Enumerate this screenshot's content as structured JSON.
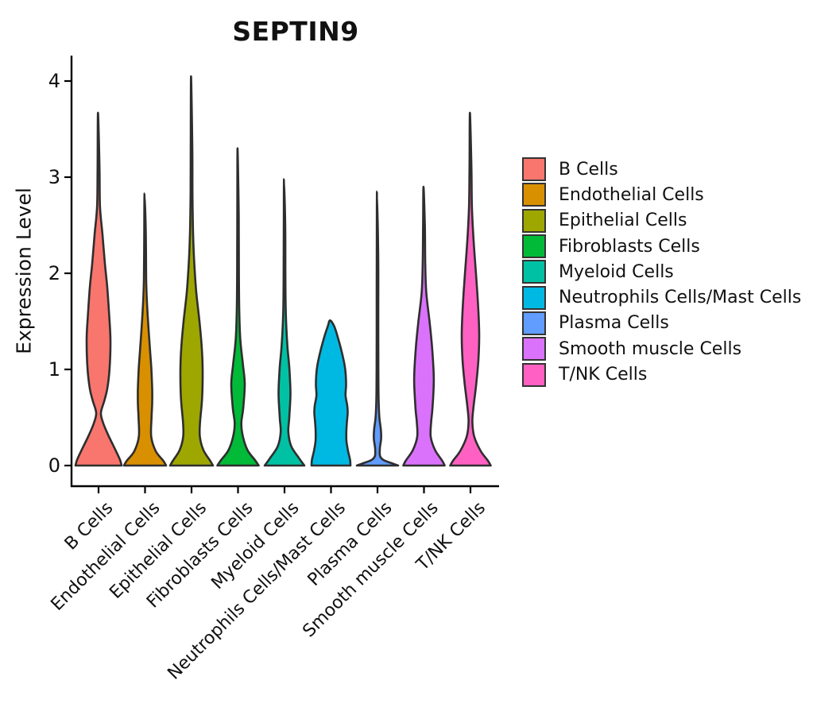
{
  "figure": {
    "background": "#FFFFFF"
  },
  "colors": {
    "axis": "#000000",
    "violin_outline": "#2E2E2E",
    "text": "#111111",
    "legend_swatch_border": "#333333"
  },
  "chart_data": {
    "type": "violin",
    "title": "SEPTIN9",
    "ylabel": "Expression Level",
    "xlabel": "",
    "yticks": [
      0,
      1,
      2,
      3,
      4
    ],
    "ylim": [
      0,
      4.2
    ],
    "grid": false,
    "legend_position": "right",
    "categories": [
      "B Cells",
      "Endothelial Cells",
      "Epithelial Cells",
      "Fibroblasts Cells",
      "Myeloid Cells",
      "Neutrophils Cells/Mast Cells",
      "Plasma Cells",
      "Smooth muscle Cells",
      "T/NK Cells"
    ],
    "series": [
      {
        "name": "B Cells",
        "color": "#F8766D",
        "max_expression": 3.67,
        "profile": [
          [
            0,
            29
          ],
          [
            0.06,
            27
          ],
          [
            0.15,
            22
          ],
          [
            0.32,
            12
          ],
          [
            0.45,
            5.5
          ],
          [
            0.55,
            3
          ],
          [
            0.68,
            7.5
          ],
          [
            0.8,
            11
          ],
          [
            1.0,
            13.8
          ],
          [
            1.3,
            15
          ],
          [
            1.55,
            13.5
          ],
          [
            1.85,
            11
          ],
          [
            2.1,
            8
          ],
          [
            2.4,
            5
          ],
          [
            2.7,
            1.8
          ],
          [
            3.1,
            1.2
          ],
          [
            3.67,
            0.7
          ]
        ]
      },
      {
        "name": "Endothelial Cells",
        "color": "#D89000",
        "max_expression": 2.83,
        "profile": [
          [
            0,
            26.5
          ],
          [
            0.05,
            23
          ],
          [
            0.15,
            13.5
          ],
          [
            0.3,
            7.8
          ],
          [
            0.5,
            8.2
          ],
          [
            0.65,
            9
          ],
          [
            0.8,
            9
          ],
          [
            1.0,
            8
          ],
          [
            1.2,
            6.3
          ],
          [
            1.45,
            4.2
          ],
          [
            1.7,
            2.4
          ],
          [
            1.95,
            1.4
          ],
          [
            2.4,
            1.0
          ],
          [
            2.83,
            0.6
          ]
        ]
      },
      {
        "name": "Epithelial Cells",
        "color": "#9EA700",
        "max_expression": 4.05,
        "profile": [
          [
            0,
            27
          ],
          [
            0.05,
            23.5
          ],
          [
            0.16,
            15
          ],
          [
            0.3,
            10.5
          ],
          [
            0.45,
            10.7
          ],
          [
            0.7,
            13.3
          ],
          [
            1.0,
            14
          ],
          [
            1.25,
            12.7
          ],
          [
            1.5,
            10
          ],
          [
            1.8,
            6
          ],
          [
            2.1,
            3.5
          ],
          [
            2.4,
            2
          ],
          [
            2.8,
            1.2
          ],
          [
            3.3,
            1.0
          ],
          [
            4.05,
            0.6
          ]
        ]
      },
      {
        "name": "Fibroblasts Cells",
        "color": "#00BA38",
        "max_expression": 3.3,
        "profile": [
          [
            0,
            26
          ],
          [
            0.05,
            22
          ],
          [
            0.16,
            12
          ],
          [
            0.3,
            6.2
          ],
          [
            0.44,
            4.2
          ],
          [
            0.6,
            6.6
          ],
          [
            0.85,
            8.5
          ],
          [
            1.05,
            6.2
          ],
          [
            1.3,
            3
          ],
          [
            1.6,
            1.6
          ],
          [
            2.0,
            1.1
          ],
          [
            2.6,
            0.9
          ],
          [
            3.3,
            0.6
          ]
        ]
      },
      {
        "name": "Myeloid Cells",
        "color": "#00C1A3",
        "max_expression": 2.98,
        "profile": [
          [
            0,
            25
          ],
          [
            0.08,
            18
          ],
          [
            0.2,
            8.5
          ],
          [
            0.35,
            4.8
          ],
          [
            0.5,
            6
          ],
          [
            0.75,
            7.5
          ],
          [
            1.0,
            6.2
          ],
          [
            1.25,
            3.6
          ],
          [
            1.6,
            1.6
          ],
          [
            2.0,
            1.1
          ],
          [
            2.5,
            0.9
          ],
          [
            2.98,
            0.6
          ]
        ]
      },
      {
        "name": "Neutrophils Cells/Mast Cells",
        "color": "#00B9E3",
        "max_expression": 1.51,
        "profile": [
          [
            0,
            24.5
          ],
          [
            0.06,
            24
          ],
          [
            0.15,
            21.5
          ],
          [
            0.25,
            19.5
          ],
          [
            0.35,
            19.3
          ],
          [
            0.45,
            20
          ],
          [
            0.55,
            21
          ],
          [
            0.62,
            20.5
          ],
          [
            0.73,
            18.3
          ],
          [
            0.84,
            19
          ],
          [
            0.95,
            18.5
          ],
          [
            1.05,
            17
          ],
          [
            1.2,
            13
          ],
          [
            1.35,
            8
          ],
          [
            1.45,
            4
          ],
          [
            1.51,
            1.2
          ]
        ]
      },
      {
        "name": "Plasma Cells",
        "color": "#619CFF",
        "max_expression": 2.85,
        "profile": [
          [
            0,
            26
          ],
          [
            0.03,
            16
          ],
          [
            0.06,
            7
          ],
          [
            0.1,
            3.2
          ],
          [
            0.18,
            3.0
          ],
          [
            0.28,
            4.6
          ],
          [
            0.38,
            4.2
          ],
          [
            0.5,
            2.4
          ],
          [
            0.7,
            1.4
          ],
          [
            1.0,
            1.1
          ],
          [
            1.6,
            1.0
          ],
          [
            2.2,
            0.9
          ],
          [
            2.85,
            0.6
          ]
        ]
      },
      {
        "name": "Smooth muscle Cells",
        "color": "#DB72FB",
        "max_expression": 2.9,
        "profile": [
          [
            0,
            26
          ],
          [
            0.05,
            23
          ],
          [
            0.16,
            14
          ],
          [
            0.3,
            8.5
          ],
          [
            0.45,
            9
          ],
          [
            0.6,
            10.7
          ],
          [
            0.85,
            12.3
          ],
          [
            1.0,
            12
          ],
          [
            1.25,
            10
          ],
          [
            1.5,
            7
          ],
          [
            1.8,
            2.9
          ],
          [
            2.1,
            1.6
          ],
          [
            2.5,
            1.1
          ],
          [
            2.9,
            0.6
          ]
        ]
      },
      {
        "name": "T/NK Cells",
        "color": "#FF61C3",
        "max_expression": 3.67,
        "profile": [
          [
            0,
            25.5
          ],
          [
            0.05,
            22
          ],
          [
            0.15,
            13
          ],
          [
            0.3,
            4.8
          ],
          [
            0.45,
            2.4
          ],
          [
            0.6,
            3.7
          ],
          [
            0.85,
            7.3
          ],
          [
            1.1,
            10
          ],
          [
            1.35,
            11
          ],
          [
            1.55,
            10.3
          ],
          [
            1.8,
            8.6
          ],
          [
            2.1,
            6
          ],
          [
            2.4,
            3.5
          ],
          [
            2.7,
            1.8
          ],
          [
            3.1,
            1.2
          ],
          [
            3.67,
            0.7
          ]
        ]
      }
    ]
  }
}
